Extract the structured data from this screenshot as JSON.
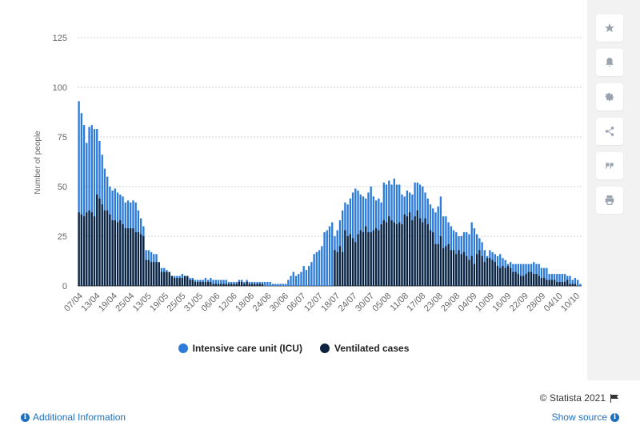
{
  "page": {
    "credit": "© Statista 2021",
    "additional_info": "Additional Information",
    "show_source": "Show source"
  },
  "toolbar": {
    "items": [
      {
        "name": "star-icon"
      },
      {
        "name": "bell-icon"
      },
      {
        "name": "gear-icon"
      },
      {
        "name": "share-icon"
      },
      {
        "name": "quote-icon"
      },
      {
        "name": "print-icon"
      }
    ]
  },
  "colors": {
    "icu": "#2c7bd9",
    "ventilated": "#0c2340",
    "grid": "#cccccc",
    "tick": "#666666"
  },
  "chart_data": {
    "type": "bar",
    "title": "",
    "ylabel": "Number of people",
    "xlabel": "",
    "ylim": [
      0,
      125
    ],
    "yticks": [
      0,
      25,
      50,
      75,
      100,
      125
    ],
    "x_tick_labels": [
      "07/04",
      "13/04",
      "19/04",
      "25/04",
      "13/05",
      "19/05",
      "25/05",
      "31/05",
      "06/06",
      "12/06",
      "18/06",
      "24/06",
      "30/06",
      "06/07",
      "12/07",
      "18/07",
      "24/07",
      "30/07",
      "05/08",
      "11/08",
      "17/08",
      "23/08",
      "29/08",
      "04/09",
      "10/09",
      "16/09",
      "22/09",
      "28/09",
      "04/10",
      "10/10"
    ],
    "legend": [
      "Intensive care unit (ICU)",
      "Ventilated cases"
    ],
    "legend_position": "bottom",
    "grid": true,
    "series": [
      {
        "name": "Intensive care unit (ICU)",
        "values": [
          93,
          87,
          81,
          72,
          80,
          81,
          79,
          79,
          73,
          66,
          59,
          55,
          50,
          48,
          49,
          47,
          46,
          45,
          42,
          43,
          42,
          43,
          42,
          38,
          34,
          30,
          18,
          18,
          17,
          16,
          16,
          11,
          9,
          9,
          8,
          6,
          5,
          5,
          5,
          5,
          6,
          5,
          4,
          4,
          4,
          3,
          3,
          3,
          3,
          4,
          3,
          4,
          3,
          3,
          3,
          3,
          3,
          3,
          2,
          2,
          2,
          2,
          3,
          3,
          2,
          3,
          2,
          2,
          2,
          2,
          2,
          2,
          2,
          2,
          2,
          1,
          1,
          1,
          1,
          1,
          1,
          3,
          5,
          7,
          5,
          6,
          7,
          10,
          8,
          10,
          12,
          16,
          17,
          18,
          20,
          27,
          28,
          30,
          32,
          25,
          28,
          33,
          38,
          42,
          41,
          44,
          47,
          49,
          48,
          46,
          45,
          44,
          47,
          50,
          45,
          43,
          44,
          42,
          52,
          51,
          53,
          51,
          54,
          51,
          51,
          46,
          45,
          48,
          47,
          46,
          52,
          52,
          51,
          50,
          47,
          44,
          41,
          39,
          37,
          40,
          45,
          35,
          35,
          32,
          30,
          28,
          27,
          25,
          25,
          27,
          27,
          26,
          32,
          29,
          26,
          24,
          22,
          18,
          15,
          18,
          17,
          16,
          15,
          16,
          14,
          13,
          11,
          12,
          11,
          11,
          11,
          11,
          11,
          11,
          11,
          11,
          12,
          11,
          11,
          9,
          9,
          9,
          6,
          6,
          6,
          6,
          6,
          6,
          6,
          5,
          5,
          3,
          4,
          3,
          1
        ],
        "color": "#2c7bd9"
      },
      {
        "name": "Ventilated cases",
        "values": [
          37,
          36,
          35,
          37,
          38,
          37,
          35,
          46,
          44,
          41,
          38,
          38,
          36,
          33,
          33,
          32,
          33,
          31,
          29,
          29,
          29,
          29,
          27,
          27,
          26,
          25,
          13,
          13,
          12,
          12,
          12,
          12,
          7,
          7,
          7,
          7,
          5,
          4,
          4,
          4,
          4,
          5,
          5,
          3,
          3,
          2,
          2,
          2,
          2,
          2,
          2,
          2,
          1,
          1,
          1,
          1,
          1,
          1,
          1,
          1,
          1,
          1,
          2,
          2,
          1,
          2,
          1,
          1,
          1,
          1,
          1,
          1,
          0,
          0,
          0,
          0,
          0,
          0,
          0,
          0,
          0,
          0,
          0,
          0,
          0,
          0,
          0,
          0,
          0,
          0,
          0,
          0,
          0,
          0,
          0,
          0,
          0,
          0,
          0,
          18,
          17,
          20,
          17,
          28,
          25,
          26,
          24,
          22,
          26,
          28,
          27,
          30,
          27,
          27,
          28,
          29,
          28,
          31,
          33,
          32,
          35,
          33,
          32,
          31,
          32,
          31,
          36,
          35,
          37,
          33,
          35,
          38,
          34,
          32,
          34,
          31,
          28,
          27,
          21,
          21,
          25,
          19,
          20,
          21,
          18,
          18,
          16,
          18,
          16,
          17,
          15,
          13,
          15,
          11,
          16,
          18,
          15,
          12,
          14,
          14,
          13,
          12,
          10,
          9,
          10,
          9,
          10,
          9,
          7,
          7,
          6,
          5,
          5,
          6,
          7,
          7,
          6,
          6,
          5,
          4,
          4,
          3,
          3,
          3,
          3,
          2,
          2,
          2,
          2,
          3,
          1,
          1,
          1,
          0
        ],
        "color": "#0c2340"
      }
    ]
  }
}
